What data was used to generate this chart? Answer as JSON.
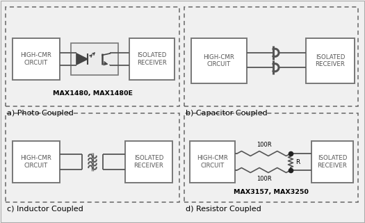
{
  "bg_color": "#f0f0f0",
  "line_color": "#555555",
  "box_edge_color": "#777777",
  "dash_color": "#666666",
  "title_a": "a) Photo Coupled",
  "title_b": "b) Capacitor Coupled",
  "title_c": "c) Inductor Coupled",
  "title_d": "d) Resistor Coupled",
  "label_hcmr": "HIGH-CMR\nCIRCUIT",
  "label_iso": "ISOLATED\nRECEIVER",
  "subtitle_a": "MAX1480, MAX1480E",
  "subtitle_d": "MAX3157, MAX3250",
  "label_100r_top": "100R",
  "label_100r_bot": "100R",
  "label_r": "R",
  "fig_w": 5.25,
  "fig_h": 3.21,
  "dpi": 100
}
